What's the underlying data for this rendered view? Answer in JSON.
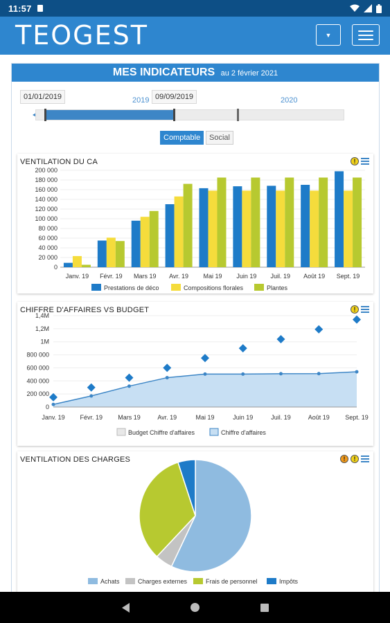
{
  "status_bar": {
    "time": "11:57"
  },
  "header": {
    "logo": "TEOGEST"
  },
  "page": {
    "title": "MES INDICATEURS",
    "date_text": "au 2 février 2021"
  },
  "period": {
    "start_date": "01/01/2019",
    "end_date": "09/09/2019",
    "years": [
      "2019",
      "2020"
    ],
    "slider_fill_fraction": 0.43
  },
  "toggles": {
    "active": "Comptable",
    "inactive": "Social"
  },
  "charts": [
    {
      "id": "ventilation-ca",
      "type": "bar",
      "title": "VENTILATION DU CA",
      "categories": [
        "Janv. 19",
        "Févr. 19",
        "Mars 19",
        "Avr. 19",
        "Mai 19",
        "Juin 19",
        "Juil. 19",
        "Août 19",
        "Sept. 19"
      ],
      "ylim": [
        0,
        200000
      ],
      "yticks": [
        0,
        20000,
        40000,
        60000,
        80000,
        100000,
        120000,
        140000,
        160000,
        180000,
        200000
      ],
      "ytick_labels": [
        "0",
        "20 000",
        "40 000",
        "60 000",
        "80 000",
        "100 000",
        "120 000",
        "140 000",
        "160 000",
        "180 000",
        "200 000"
      ],
      "legend_position": "bottom",
      "series": [
        {
          "name": "Prestations de déco",
          "color": "#1e7bc8",
          "values": [
            9000,
            55000,
            96000,
            130000,
            163000,
            167000,
            168000,
            170000,
            198000
          ]
        },
        {
          "name": "Compositions florales",
          "color": "#f5dc3c",
          "values": [
            23000,
            61000,
            104000,
            146000,
            158000,
            158000,
            158000,
            158000,
            158000
          ]
        },
        {
          "name": "Plantes",
          "color": "#b7c930",
          "values": [
            5000,
            54000,
            116000,
            172000,
            185000,
            185000,
            185000,
            185000,
            185000
          ]
        }
      ]
    },
    {
      "id": "ca-vs-budget",
      "type": "line",
      "title": "CHIFFRE D'AFFAIRES VS BUDGET",
      "categories": [
        "Janv. 19",
        "Févr. 19",
        "Mars 19",
        "Avr. 19",
        "Mai 19",
        "Juin 19",
        "Juil. 19",
        "Août 19",
        "Sept. 19"
      ],
      "ylim": [
        0,
        1400000
      ],
      "yticks": [
        0,
        200000,
        400000,
        600000,
        800000,
        1000000,
        1200000,
        1400000
      ],
      "ytick_labels": [
        "0",
        "200 000",
        "400 000",
        "600 000",
        "800 000",
        "1M",
        "1,2M",
        "1,4M"
      ],
      "legend_position": "bottom",
      "series": [
        {
          "name": "Budget Chiffre d'affaires",
          "color": "#1e7bc8",
          "marker": "diamond",
          "values": [
            150000,
            300000,
            450000,
            600000,
            750000,
            900000,
            1040000,
            1190000,
            1340000
          ]
        },
        {
          "name": "Chiffre d'affaires",
          "color": "#3d86c6",
          "fill": "#c7dff3",
          "values": [
            40000,
            170000,
            320000,
            450000,
            505000,
            505000,
            510000,
            512000,
            540000
          ]
        }
      ]
    },
    {
      "id": "ventilation-charges",
      "type": "pie",
      "title": "VENTILATION DES CHARGES",
      "legend_position": "bottom",
      "slices": [
        {
          "name": "Achats",
          "color": "#8fbbe0",
          "value": 57
        },
        {
          "name": "Charges externes",
          "color": "#c3c3c3",
          "value": 5
        },
        {
          "name": "Frais de personnel",
          "color": "#b7c930",
          "value": 33
        },
        {
          "name": "Impôts",
          "color": "#1e7bc8",
          "value": 5
        }
      ]
    }
  ]
}
